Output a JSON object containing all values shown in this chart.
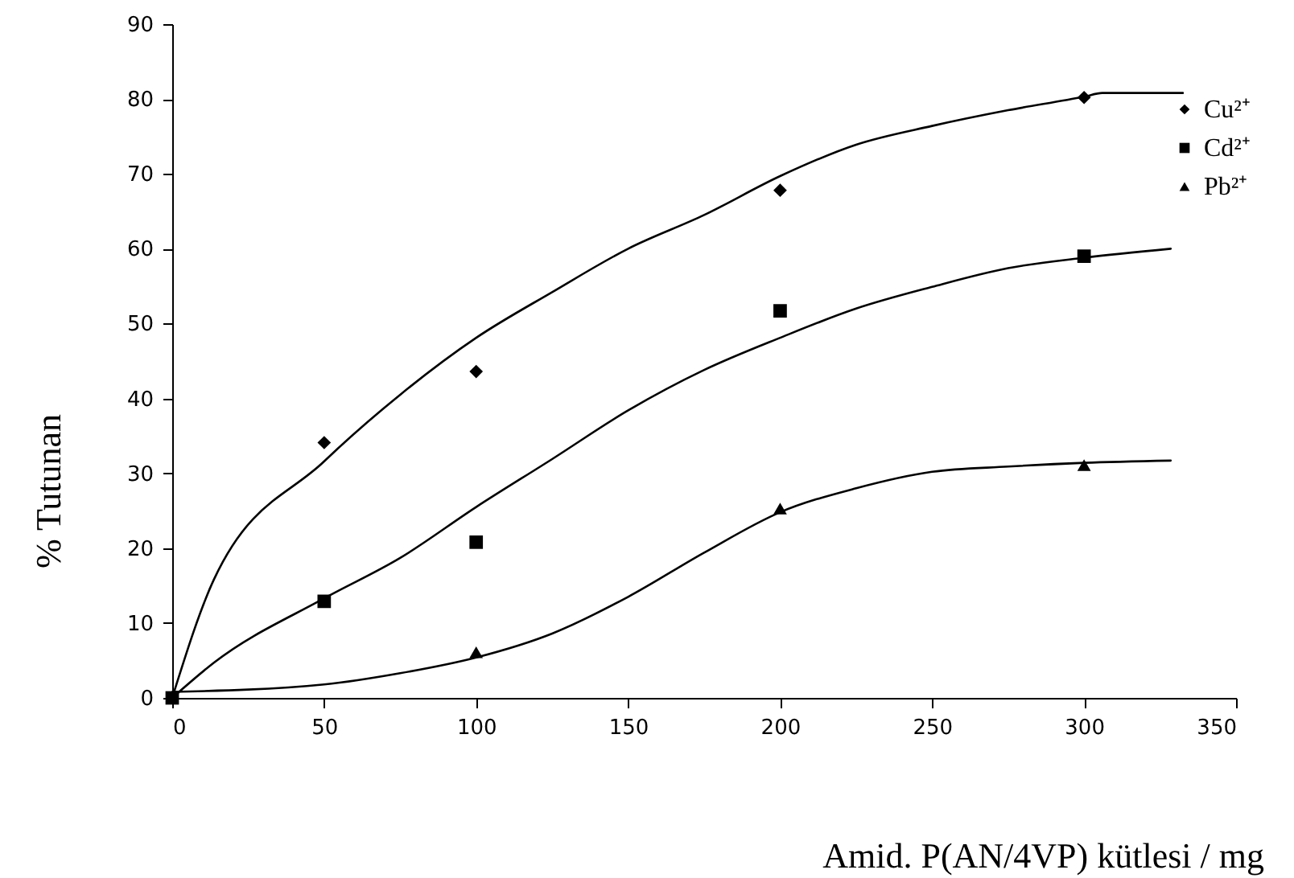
{
  "chart_data": {
    "type": "scatter",
    "xlabel": "Amid. P(AN/4VP) kütlesi / mg",
    "ylabel": "% Tutunan",
    "xlim": [
      0,
      350
    ],
    "xticks": [
      0,
      50,
      100,
      150,
      200,
      250,
      300,
      350
    ],
    "ylim": [
      0,
      90
    ],
    "yticks": [
      0,
      10,
      20,
      30,
      40,
      50,
      60,
      70,
      80,
      90
    ],
    "legend": "top right",
    "series": [
      {
        "name": "Cu²⁺",
        "marker": "diamond",
        "color": "#000000",
        "x": [
          50,
          100,
          200,
          300
        ],
        "values": [
          34.1,
          43.6,
          67.8,
          80.2
        ]
      },
      {
        "name": "Cd²⁺",
        "marker": "square",
        "color": "#000000",
        "x": [
          0,
          50,
          100,
          200,
          300
        ],
        "values": [
          0,
          12.9,
          20.8,
          51.7,
          59.0
        ]
      },
      {
        "name": "Pb²⁺",
        "marker": "triangle",
        "color": "#000000",
        "x": [
          100,
          200,
          300
        ],
        "values": [
          6.1,
          25.3,
          31.1
        ]
      },
      {
        "type": "line",
        "marker": "none",
        "line_style": "solid",
        "color": "#000000",
        "x": [
          0,
          13.7,
          50,
          75,
          100,
          125,
          150,
          175,
          200,
          225,
          250,
          275,
          300,
          306,
          332.5
        ],
        "values": [
          0,
          15.8,
          31.6,
          40.5,
          48.1,
          54.2,
          60.0,
          64.5,
          69.7,
          73.9,
          76.4,
          78.5,
          80.3,
          80.8,
          80.8
        ]
      },
      {
        "type": "line",
        "marker": "none",
        "line_style": "solid",
        "color": "#000000",
        "x": [
          0,
          13.7,
          50,
          75,
          100,
          125,
          150,
          175,
          200,
          225,
          250,
          275,
          300,
          328.5
        ],
        "values": [
          0,
          4.7,
          13.3,
          18.7,
          25.5,
          31.9,
          38.4,
          43.8,
          48.1,
          52.0,
          54.9,
          57.4,
          58.8,
          60.0
        ]
      },
      {
        "type": "line",
        "marker": "none",
        "line_style": "solid",
        "color": "#000000",
        "x": [
          0,
          50,
          75,
          100,
          125,
          150,
          175,
          200,
          225,
          250,
          275,
          300,
          328.5
        ],
        "values": [
          0.8,
          1.8,
          3.3,
          5.4,
          8.6,
          13.5,
          19.4,
          24.8,
          28.0,
          30.2,
          30.9,
          31.4,
          31.7
        ]
      }
    ]
  }
}
